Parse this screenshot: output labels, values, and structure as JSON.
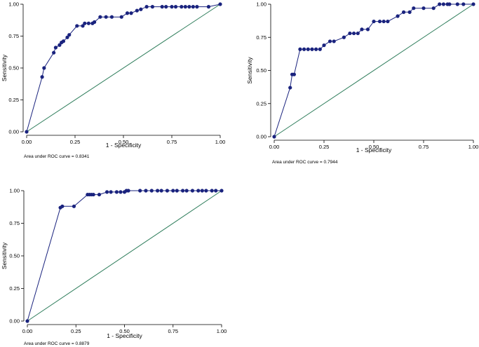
{
  "colors": {
    "roc_line": "#1a237e",
    "roc_marker": "#1a237e",
    "reference_line": "#2e7d5b",
    "axis": "#000000"
  },
  "chart_data": [
    {
      "type": "line",
      "xlabel": "1 - Specificity",
      "ylabel": "Sensitivity",
      "xlim": [
        0,
        1
      ],
      "ylim": [
        0,
        1
      ],
      "x_ticks": [
        "0.00",
        "0.25",
        "0.50",
        "0.75",
        "1.00"
      ],
      "y_ticks": [
        "0.00",
        "0.25",
        "0.50",
        "0.75",
        "1.00"
      ],
      "annotation": "Area under ROC curve = 0.8341",
      "grid": false,
      "reference_line": [
        [
          0,
          0
        ],
        [
          1,
          1
        ]
      ],
      "series": [
        {
          "x": [
            0.0,
            0.08,
            0.09,
            0.14,
            0.15,
            0.17,
            0.18,
            0.19,
            0.21,
            0.22,
            0.26,
            0.29,
            0.3,
            0.32,
            0.34,
            0.35,
            0.38,
            0.41,
            0.44,
            0.49,
            0.52,
            0.54,
            0.57,
            0.59,
            0.62,
            0.65,
            0.7,
            0.72,
            0.75,
            0.77,
            0.8,
            0.82,
            0.84,
            0.86,
            0.88,
            0.94,
            1.0
          ],
          "y": [
            0.0,
            0.43,
            0.5,
            0.62,
            0.66,
            0.68,
            0.7,
            0.71,
            0.74,
            0.76,
            0.83,
            0.83,
            0.85,
            0.85,
            0.85,
            0.86,
            0.9,
            0.9,
            0.9,
            0.9,
            0.93,
            0.93,
            0.95,
            0.96,
            0.98,
            0.98,
            0.98,
            0.98,
            0.98,
            0.98,
            0.98,
            0.98,
            0.98,
            0.98,
            0.98,
            0.98,
            1.0
          ]
        }
      ]
    },
    {
      "type": "line",
      "xlabel": "1 - Specificity",
      "ylabel": "Sensitivity",
      "xlim": [
        0,
        1
      ],
      "ylim": [
        0,
        1
      ],
      "x_ticks": [
        "0.00",
        "0.25",
        "0.50",
        "0.75",
        "1.00"
      ],
      "y_ticks": [
        "0.00",
        "0.25",
        "0.50",
        "0.75",
        "1.00"
      ],
      "annotation": "Area under ROC curve = 0.7944",
      "grid": false,
      "reference_line": [
        [
          0,
          0
        ],
        [
          1,
          1
        ]
      ],
      "series": [
        {
          "x": [
            0.0,
            0.08,
            0.09,
            0.1,
            0.13,
            0.15,
            0.17,
            0.19,
            0.21,
            0.23,
            0.25,
            0.28,
            0.3,
            0.35,
            0.38,
            0.4,
            0.42,
            0.44,
            0.47,
            0.5,
            0.53,
            0.55,
            0.57,
            0.62,
            0.65,
            0.68,
            0.7,
            0.75,
            0.8,
            0.83,
            0.85,
            0.87,
            0.88,
            0.92,
            0.95,
            1.0
          ],
          "y": [
            0.0,
            0.37,
            0.47,
            0.47,
            0.66,
            0.66,
            0.66,
            0.66,
            0.66,
            0.66,
            0.69,
            0.72,
            0.72,
            0.75,
            0.78,
            0.78,
            0.78,
            0.81,
            0.81,
            0.87,
            0.87,
            0.87,
            0.87,
            0.91,
            0.94,
            0.94,
            0.97,
            0.97,
            0.97,
            1.0,
            1.0,
            1.0,
            1.0,
            1.0,
            1.0,
            1.0
          ]
        }
      ]
    },
    {
      "type": "line",
      "xlabel": "1 - Specificity",
      "ylabel": "Sensitivity",
      "xlim": [
        0,
        1
      ],
      "ylim": [
        0,
        1
      ],
      "x_ticks": [
        "0.00",
        "0.25",
        "0.50",
        "0.75",
        "1.00"
      ],
      "y_ticks": [
        "0.00",
        "0.25",
        "0.50",
        "0.75",
        "1.00"
      ],
      "annotation": "Area under ROC curve = 0.8879",
      "grid": false,
      "reference_line": [
        [
          0,
          0
        ],
        [
          1,
          1
        ]
      ],
      "series": [
        {
          "x": [
            0.0,
            0.17,
            0.18,
            0.24,
            0.31,
            0.32,
            0.33,
            0.34,
            0.37,
            0.41,
            0.43,
            0.46,
            0.48,
            0.5,
            0.51,
            0.52,
            0.58,
            0.61,
            0.64,
            0.67,
            0.69,
            0.72,
            0.75,
            0.77,
            0.8,
            0.82,
            0.85,
            0.88,
            0.9,
            0.92,
            0.95,
            0.97,
            1.0
          ],
          "y": [
            0.0,
            0.87,
            0.88,
            0.88,
            0.97,
            0.97,
            0.97,
            0.97,
            0.97,
            0.99,
            0.99,
            0.99,
            0.99,
            0.99,
            1.0,
            1.0,
            1.0,
            1.0,
            1.0,
            1.0,
            1.0,
            1.0,
            1.0,
            1.0,
            1.0,
            1.0,
            1.0,
            1.0,
            1.0,
            1.0,
            1.0,
            1.0,
            1.0
          ]
        }
      ]
    }
  ]
}
